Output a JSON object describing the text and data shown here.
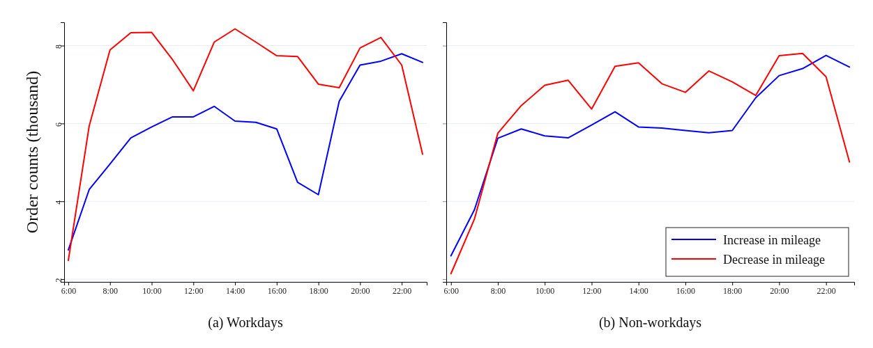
{
  "chart_data": [
    {
      "type": "line",
      "title": "(a) Workdays",
      "ylabel": "Order counts (thousand)",
      "x": [
        6,
        7,
        8,
        9,
        10,
        11,
        12,
        13,
        14,
        15,
        16,
        17,
        18,
        19,
        20,
        21,
        22,
        23
      ],
      "xlim": [
        5.8,
        23.2
      ],
      "ylim": [
        1.93,
        8.6
      ],
      "xticks": [
        {
          "value": 6,
          "label": "6:00"
        },
        {
          "value": 8,
          "label": "8:00"
        },
        {
          "value": 10,
          "label": "10:00"
        },
        {
          "value": 12,
          "label": "12:00"
        },
        {
          "value": 14,
          "label": "14:00"
        },
        {
          "value": 16,
          "label": "16:00"
        },
        {
          "value": 18,
          "label": "18:00"
        },
        {
          "value": 20,
          "label": "20:00"
        },
        {
          "value": 22,
          "label": "22:00"
        }
      ],
      "yticks": [
        2,
        4,
        6,
        8
      ],
      "grid": "y",
      "legend": false,
      "series": [
        {
          "color": "#0000ff",
          "values": [
            2.75,
            4.3,
            4.96,
            5.63,
            5.91,
            6.17,
            6.17,
            6.44,
            6.06,
            6.03,
            5.86,
            4.49,
            4.17,
            6.57,
            7.5,
            7.6,
            7.79,
            7.57
          ]
        },
        {
          "color": "#ff0000",
          "values": [
            2.48,
            5.93,
            7.89,
            8.33,
            8.34,
            7.64,
            6.84,
            8.09,
            8.43,
            8.09,
            7.74,
            7.72,
            7.01,
            6.92,
            7.94,
            8.21,
            7.5,
            5.21
          ]
        }
      ]
    },
    {
      "type": "line",
      "title": "(b) Non-workdays",
      "x": [
        6,
        7,
        8,
        9,
        10,
        11,
        12,
        13,
        14,
        15,
        16,
        17,
        18,
        19,
        20,
        21,
        22,
        23
      ],
      "xlim": [
        5.8,
        23.2
      ],
      "ylim": [
        1.93,
        8.6
      ],
      "xticks": [
        {
          "value": 6,
          "label": "6:00"
        },
        {
          "value": 8,
          "label": "8:00"
        },
        {
          "value": 10,
          "label": "10:00"
        },
        {
          "value": 12,
          "label": "12:00"
        },
        {
          "value": 14,
          "label": "14:00"
        },
        {
          "value": 16,
          "label": "16:00"
        },
        {
          "value": 18,
          "label": "18:00"
        },
        {
          "value": 20,
          "label": "20:00"
        },
        {
          "value": 22,
          "label": "22:00"
        }
      ],
      "yticks": [
        2,
        4,
        6,
        8
      ],
      "grid": "y",
      "legend": "bottom right",
      "tick_labels": "x",
      "series": [
        {
          "name": "Increase in mileage",
          "color": "#0000ff",
          "values": [
            2.6,
            3.78,
            5.62,
            5.86,
            5.68,
            5.63,
            5.96,
            6.3,
            5.91,
            5.88,
            5.82,
            5.76,
            5.82,
            6.66,
            7.23,
            7.41,
            7.75,
            7.45
          ]
        },
        {
          "name": "Decrease in mileage",
          "color": "#ff0000",
          "values": [
            2.14,
            3.54,
            5.75,
            6.46,
            6.98,
            7.11,
            6.37,
            7.47,
            7.56,
            7.02,
            6.8,
            7.35,
            7.07,
            6.72,
            7.74,
            7.8,
            7.2,
            5.01
          ]
        }
      ]
    }
  ]
}
